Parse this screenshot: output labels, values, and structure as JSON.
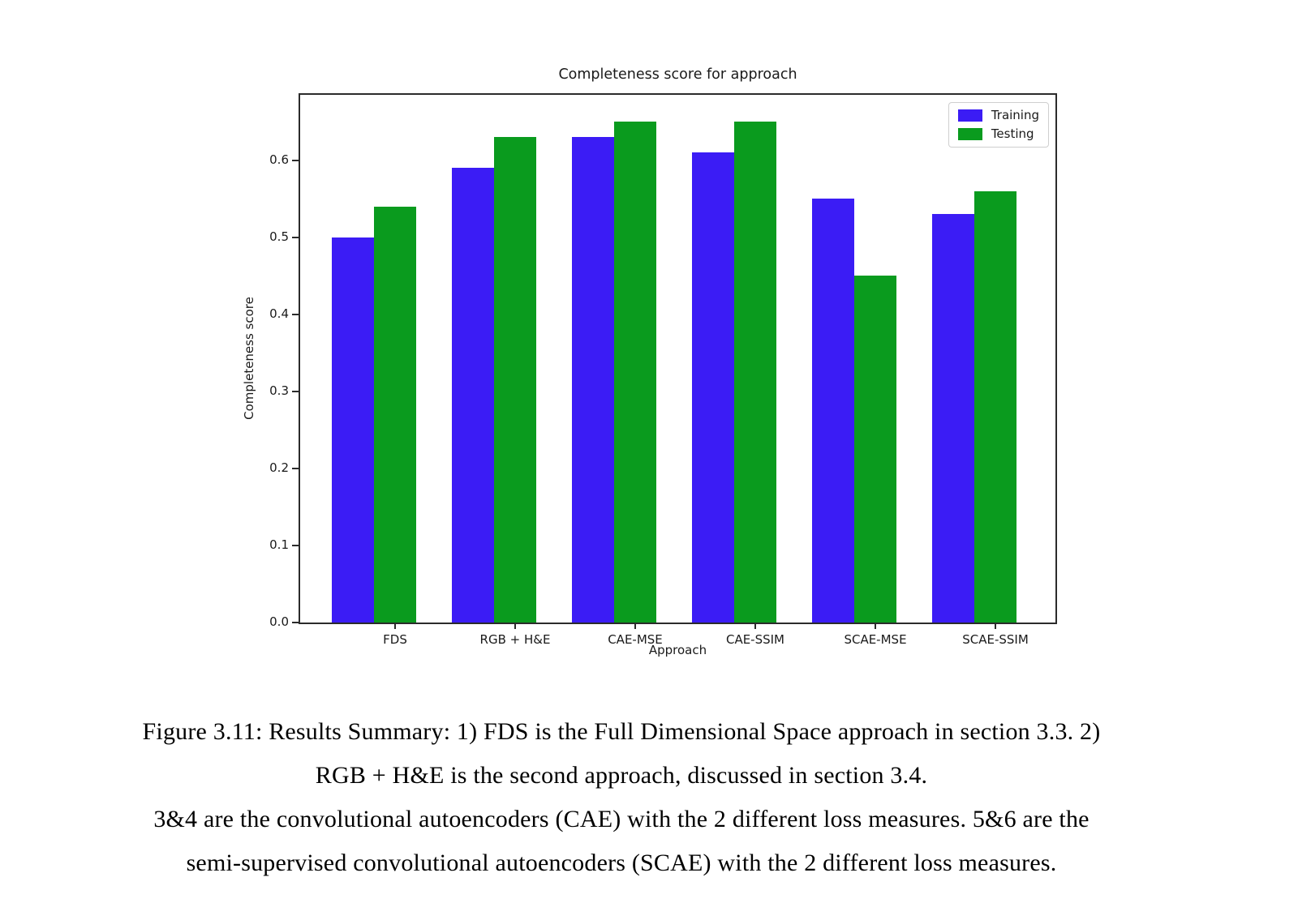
{
  "chart_data": {
    "type": "bar",
    "title": "Completeness score for approach",
    "xlabel": "Approach",
    "ylabel": "Completeness score",
    "categories": [
      "FDS",
      "RGB + H&E",
      "CAE-MSE",
      "CAE-SSIM",
      "SCAE-MSE",
      "SCAE-SSIM"
    ],
    "series": [
      {
        "name": "Training",
        "color": "#3b1cf5",
        "values": [
          0.5,
          0.59,
          0.63,
          0.61,
          0.55,
          0.53
        ]
      },
      {
        "name": "Testing",
        "color": "#0a9b1e",
        "values": [
          0.54,
          0.63,
          0.65,
          0.65,
          0.45,
          0.56
        ]
      }
    ],
    "ylim": [
      0,
      0.685
    ],
    "yticks": [
      0.0,
      0.1,
      0.2,
      0.3,
      0.4,
      0.5,
      0.6
    ],
    "ytick_format_decimals": 1,
    "legend_position": "upper right",
    "grid": false,
    "frame_color": "#2b2b2b"
  },
  "caption": {
    "lines": [
      "Figure 3.11: Results Summary: 1) FDS is the Full Dimensional Space approach in section 3.3. 2)",
      "RGB + H&E is the second approach, discussed in section 3.4.",
      "3&4 are the convolutional autoencoders (CAE) with the 2 different loss measures. 5&6 are the",
      "semi-supervised convolutional autoencoders (SCAE) with the 2 different loss measures."
    ]
  }
}
